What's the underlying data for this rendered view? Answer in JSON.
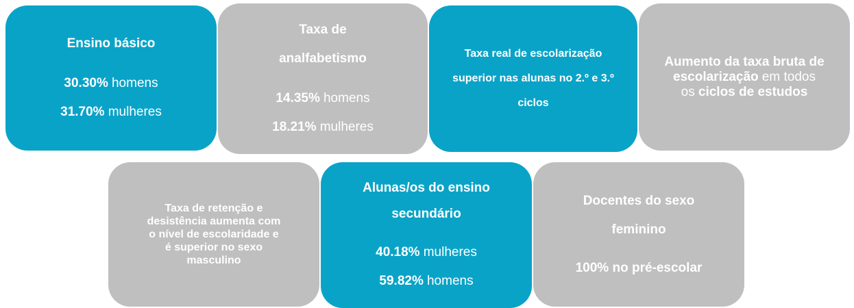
{
  "tiles": [
    {
      "color": "#0aa3c8",
      "paragraphs": [
        [
          {
            "text": "Ensino básico",
            "bold": true
          }
        ],
        [
          {
            "text": "30.30%",
            "bold": true
          },
          {
            "text": "homens",
            "bold": false
          }
        ],
        [
          {
            "text": "31.70%",
            "bold": true
          },
          {
            "text": "mulheres",
            "bold": false
          }
        ]
      ]
    },
    {
      "color": "#bfbfbf",
      "paragraphs": [
        [
          {
            "text": "Taxa de analfabetismo",
            "bold": true
          }
        ],
        [
          {
            "text": "14.35%",
            "bold": true
          },
          {
            "text": "homens",
            "bold": false
          }
        ],
        [
          {
            "text": "18.21%",
            "bold": true
          },
          {
            "text": "mulheres",
            "bold": false
          }
        ]
      ]
    },
    {
      "color": "#0aa3c8",
      "paragraphs": [
        [
          {
            "text": "Taxa real de escolarização superior nas alunas no 2.º e 3.º ciclos",
            "bold": true
          }
        ]
      ]
    },
    {
      "color": "#bfbfbf",
      "paragraphs": [
        [
          {
            "text": "Aumento da taxa bruta de escolarização",
            "bold": true
          },
          {
            "text": "em todos os",
            "bold": false
          },
          {
            "text": "ciclos de estudos",
            "bold": true
          }
        ]
      ]
    },
    {
      "color": "#bfbfbf",
      "paragraphs": [
        [
          {
            "text": "Taxa de retenção e desistência aumenta com o nível de escolaridade e é superior no sexo masculino",
            "bold": true
          }
        ]
      ]
    },
    {
      "color": "#0aa3c8",
      "paragraphs": [
        [
          {
            "text": "Alunas/os do ensino secundário",
            "bold": true
          }
        ],
        [
          {
            "text": "40.18%",
            "bold": true
          },
          {
            "text": "mulheres",
            "bold": false
          }
        ],
        [
          {
            "text": "59.82%",
            "bold": true
          },
          {
            "text": "homens",
            "bold": false
          }
        ]
      ]
    },
    {
      "color": "#bfbfbf",
      "paragraphs": [
        [
          {
            "text": "Docentes do sexo feminino",
            "bold": true
          }
        ],
        [
          {
            "text": "100% no pré-escolar",
            "bold": true
          }
        ]
      ]
    }
  ]
}
